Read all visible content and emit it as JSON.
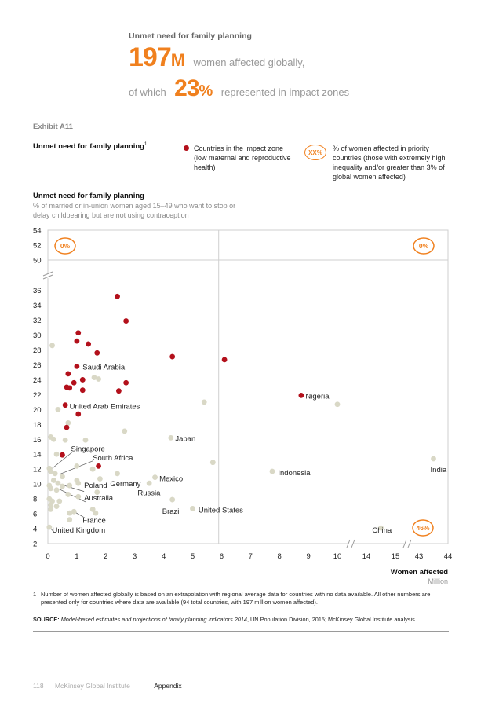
{
  "header": {
    "title": "Unmet need for family planning",
    "line1_number": "197",
    "line1_unit": "M",
    "line1_text": "women affected globally,",
    "line2_prefix": "of which",
    "line2_number": "23",
    "line2_unit": "%",
    "line2_text": "represented in impact zones"
  },
  "exhibit": "Exhibit A11",
  "legend": {
    "title": "Unmet need for family planning",
    "title_sup": "1",
    "dot_label": "Countries in the impact zone (low maternal and reproductive health)",
    "circle_label": "XX%",
    "circle_text": "% of women affected in priority countries (those with extremely high inequality and/or greater than 3% of global women affected)"
  },
  "colors": {
    "impact": "#b3101b",
    "other": "#d9d8c6",
    "accent": "#f0801e"
  },
  "chart_data": {
    "type": "scatter",
    "title": "Unmet need for family planning",
    "subtitle": "% of married or in-union women aged 15–49 who want to stop or delay childbearing but are not using contraception",
    "xlabel": "Women affected",
    "xunit": "Million",
    "x_ticks": [
      "0",
      "1",
      "2",
      "3",
      "4",
      "5",
      "6",
      "7",
      "8",
      "9",
      "10",
      "14",
      "15",
      "43",
      "44"
    ],
    "y_ticks": [
      "2",
      "4",
      "6",
      "8",
      "10",
      "12",
      "14",
      "16",
      "18",
      "20",
      "22",
      "24",
      "26",
      "28",
      "30",
      "32",
      "34",
      "36",
      "50",
      "52",
      "54"
    ],
    "x_breaks": [
      [
        10,
        14
      ],
      [
        15,
        43
      ]
    ],
    "y_breaks": [
      [
        36,
        50
      ]
    ],
    "quadrant_labels": [
      "0%",
      "0%",
      "46%"
    ],
    "impact_points": [
      {
        "x": 2.4,
        "y": 35.2
      },
      {
        "x": 2.7,
        "y": 31.9
      },
      {
        "x": 1.05,
        "y": 30.3
      },
      {
        "x": 1.4,
        "y": 28.8
      },
      {
        "x": 1.0,
        "y": 29.2
      },
      {
        "x": 1.7,
        "y": 27.6
      },
      {
        "x": 4.3,
        "y": 27.1
      },
      {
        "x": 6.1,
        "y": 26.7
      },
      {
        "x": 1.0,
        "y": 25.8
      },
      {
        "x": 0.7,
        "y": 24.8
      },
      {
        "x": 1.2,
        "y": 24.0
      },
      {
        "x": 0.9,
        "y": 23.6
      },
      {
        "x": 2.7,
        "y": 23.6
      },
      {
        "x": 0.65,
        "y": 23.0
      },
      {
        "x": 0.75,
        "y": 22.9
      },
      {
        "x": 1.2,
        "y": 22.6
      },
      {
        "x": 2.45,
        "y": 22.5
      },
      {
        "x": 8.75,
        "y": 21.9
      },
      {
        "x": 0.6,
        "y": 20.6
      },
      {
        "x": 1.05,
        "y": 19.4
      },
      {
        "x": 0.65,
        "y": 17.6
      },
      {
        "x": 0.5,
        "y": 13.9
      },
      {
        "x": 1.75,
        "y": 12.4
      }
    ],
    "other_points": [
      {
        "x": 0.15,
        "y": 28.6
      },
      {
        "x": 1.6,
        "y": 24.3
      },
      {
        "x": 1.75,
        "y": 24.1
      },
      {
        "x": 5.4,
        "y": 21.0
      },
      {
        "x": 0.35,
        "y": 20.0
      },
      {
        "x": 10.0,
        "y": 20.7
      },
      {
        "x": 0.7,
        "y": 18.2
      },
      {
        "x": 2.65,
        "y": 17.1
      },
      {
        "x": 0.1,
        "y": 16.3
      },
      {
        "x": 0.2,
        "y": 16.0
      },
      {
        "x": 0.6,
        "y": 15.9
      },
      {
        "x": 4.25,
        "y": 16.2
      },
      {
        "x": 1.3,
        "y": 15.9
      },
      {
        "x": 0.3,
        "y": 14.0
      },
      {
        "x": 5.7,
        "y": 12.9
      },
      {
        "x": 43.5,
        "y": 13.4
      },
      {
        "x": 1.0,
        "y": 12.4
      },
      {
        "x": 0.05,
        "y": 12.1
      },
      {
        "x": 1.55,
        "y": 12.0
      },
      {
        "x": 0.1,
        "y": 11.7
      },
      {
        "x": 0.25,
        "y": 11.4
      },
      {
        "x": 7.75,
        "y": 11.7
      },
      {
        "x": 0.5,
        "y": 11.0
      },
      {
        "x": 2.4,
        "y": 11.4
      },
      {
        "x": 1.8,
        "y": 10.7
      },
      {
        "x": 0.2,
        "y": 10.5
      },
      {
        "x": 1.0,
        "y": 10.5
      },
      {
        "x": 0.35,
        "y": 10.1
      },
      {
        "x": 1.05,
        "y": 10.1
      },
      {
        "x": 3.7,
        "y": 10.9
      },
      {
        "x": 3.5,
        "y": 10.1
      },
      {
        "x": 0.05,
        "y": 9.8
      },
      {
        "x": 0.5,
        "y": 9.7
      },
      {
        "x": 0.75,
        "y": 9.8
      },
      {
        "x": 0.1,
        "y": 9.4
      },
      {
        "x": 0.3,
        "y": 9.2
      },
      {
        "x": 0.7,
        "y": 8.6
      },
      {
        "x": 1.05,
        "y": 8.3
      },
      {
        "x": 1.7,
        "y": 8.9
      },
      {
        "x": 0.05,
        "y": 8.0
      },
      {
        "x": 0.15,
        "y": 7.7
      },
      {
        "x": 0.4,
        "y": 7.7
      },
      {
        "x": 4.3,
        "y": 7.9
      },
      {
        "x": 0.1,
        "y": 7.2
      },
      {
        "x": 0.3,
        "y": 7.0
      },
      {
        "x": 0.1,
        "y": 6.6
      },
      {
        "x": 5.0,
        "y": 6.7
      },
      {
        "x": 0.75,
        "y": 6.1
      },
      {
        "x": 0.9,
        "y": 6.3
      },
      {
        "x": 1.55,
        "y": 6.6
      },
      {
        "x": 1.65,
        "y": 6.1
      },
      {
        "x": 0.75,
        "y": 5.2
      },
      {
        "x": 0.05,
        "y": 4.2
      },
      {
        "x": 14.5,
        "y": 4.1
      }
    ],
    "labels": [
      {
        "text": "Saudi Arabia",
        "x": 1.2,
        "y": 25.7
      },
      {
        "text": "United Arab Emirates",
        "x": 0.75,
        "y": 20.4
      },
      {
        "text": "Nigeria",
        "x": 8.9,
        "y": 21.8
      },
      {
        "text": "Japan",
        "x": 4.4,
        "y": 16.1
      },
      {
        "text": "Singapore",
        "x": 0.8,
        "y": 14.7
      },
      {
        "text": "South Africa",
        "x": 1.55,
        "y": 13.5
      },
      {
        "text": "India",
        "x": 43.0,
        "y": 11.9
      },
      {
        "text": "Indonesia",
        "x": 7.95,
        "y": 11.5
      },
      {
        "text": "Mexico",
        "x": 3.85,
        "y": 10.7
      },
      {
        "text": "Germany",
        "x": 2.15,
        "y": 10.0
      },
      {
        "text": "Poland",
        "x": 1.25,
        "y": 9.8
      },
      {
        "text": "Russia",
        "x": 3.1,
        "y": 8.8
      },
      {
        "text": "Australia",
        "x": 1.25,
        "y": 8.1
      },
      {
        "text": "Brazil",
        "x": 3.95,
        "y": 6.3
      },
      {
        "text": "United States",
        "x": 5.2,
        "y": 6.5
      },
      {
        "text": "France",
        "x": 1.2,
        "y": 5.1
      },
      {
        "text": "China",
        "x": 14.2,
        "y": 3.8
      },
      {
        "text": "United Kingdom",
        "x": 0.15,
        "y": 3.8
      }
    ]
  },
  "footnote": {
    "number": "1",
    "text": "Number of women affected globally is based on an extrapolation with regional average data for countries with no data available. All other numbers are presented only for countries where data are available (94 total countries, with 197 million women affected)."
  },
  "source": {
    "label": "SOURCE:",
    "italic": "Model-based estimates and projections of family planning indicators 2014",
    "rest": ", UN Population Division, 2015; McKinsey Global Institute analysis"
  },
  "footer": {
    "page": "118",
    "publisher": "McKinsey Global Institute",
    "section": "Appendix"
  }
}
